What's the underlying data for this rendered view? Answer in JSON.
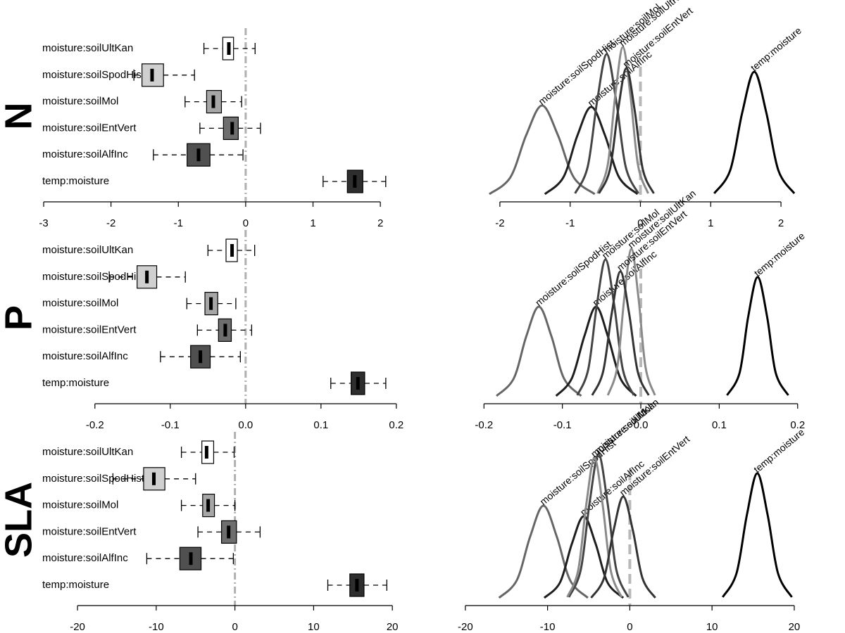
{
  "chart_data": [
    {
      "type": "boxplot",
      "title": "N",
      "xlim": [
        -3,
        2.26
      ],
      "xticks": [
        -3,
        -2,
        -1,
        0,
        1,
        2
      ],
      "reference_line": 0,
      "boxes": [
        {
          "name": "moisture:soilUltKan",
          "color": "#ffffff",
          "min": -0.62,
          "q1": -0.34,
          "median": -0.25,
          "q3": -0.18,
          "max": 0.14
        },
        {
          "name": "moisture:soilSpodHist",
          "color": "#d0d0d0",
          "min": -1.66,
          "q1": -1.54,
          "median": -1.39,
          "q3": -1.22,
          "max": -0.76
        },
        {
          "name": "moisture:soilMol",
          "color": "#a6a6a6",
          "min": -0.9,
          "q1": -0.58,
          "median": -0.48,
          "q3": -0.36,
          "max": -0.06
        },
        {
          "name": "moisture:soilEntVert",
          "color": "#6e6e6e",
          "min": -0.68,
          "q1": -0.33,
          "median": -0.2,
          "q3": -0.11,
          "max": 0.22
        },
        {
          "name": "moisture:soilAlfInc",
          "color": "#505050",
          "min": -1.37,
          "q1": -0.87,
          "median": -0.7,
          "q3": -0.53,
          "max": -0.04
        },
        {
          "name": "temp:moisture",
          "color": "#2e2e2e",
          "min": 1.15,
          "q1": 1.51,
          "median": 1.62,
          "q3": 1.74,
          "max": 2.08
        }
      ]
    },
    {
      "type": "density",
      "xlim": [
        -2.55,
        2.36
      ],
      "xticks": [
        -2,
        -1,
        0,
        1,
        2
      ],
      "reference_line": 0,
      "series": [
        {
          "name": "moisture:soilSpodHist",
          "color": "#666666",
          "x": [
            -2.15,
            -1.85,
            -1.625,
            -1.4,
            -1.175,
            -0.95,
            -0.65
          ],
          "values": [
            0.01,
            0.25,
            0.85,
            1.27,
            0.85,
            0.25,
            0.01
          ]
        },
        {
          "name": "moisture:soilAlfInc",
          "color": "#1e1e1e",
          "x": [
            -1.36,
            -1.096,
            -0.898,
            -0.7,
            -0.502,
            -0.304,
            -0.04
          ],
          "values": [
            0.01,
            0.25,
            0.84,
            1.25,
            0.84,
            0.25,
            0.01
          ]
        },
        {
          "name": "moisture:soilMol",
          "color": "#444444",
          "x": [
            -0.93,
            -0.75,
            -0.615,
            -0.48,
            -0.345,
            -0.21,
            -0.03
          ],
          "values": [
            0.02,
            0.4,
            1.34,
            2.0,
            1.34,
            0.4,
            0.02
          ]
        },
        {
          "name": "moisture:soilUltKan",
          "color": "#8a8a8a",
          "x": [
            -0.61,
            -0.466,
            -0.358,
            -0.25,
            -0.142,
            -0.034,
            0.11
          ],
          "values": [
            0.02,
            0.42,
            1.41,
            2.1,
            1.41,
            0.42,
            0.02
          ]
        },
        {
          "name": "moisture:soilEntVert",
          "color": "#333333",
          "x": [
            -0.59,
            -0.434,
            -0.317,
            -0.2,
            -0.083,
            0.034,
            0.19
          ],
          "values": [
            0.02,
            0.36,
            1.21,
            1.8,
            1.21,
            0.36,
            0.02
          ]
        },
        {
          "name": "temp:moisture",
          "color": "#000000",
          "x": [
            1.05,
            1.278,
            1.449,
            1.62,
            1.791,
            1.962,
            2.19
          ],
          "values": [
            0.02,
            0.35,
            1.17,
            1.75,
            1.17,
            0.35,
            0.02
          ]
        }
      ]
    },
    {
      "type": "boxplot",
      "title": "P",
      "xlim": [
        -0.268,
        0.202
      ],
      "xticks": [
        -0.2,
        -0.1,
        {
          "value": 0,
          "label": "0.0"
        },
        0.1,
        0.2
      ],
      "reference_line": 0,
      "boxes": [
        {
          "name": "moisture:soilUltKan",
          "color": "#ffffff",
          "min": -0.05,
          "q1": -0.026,
          "median": -0.018,
          "q3": -0.011,
          "max": 0.012
        },
        {
          "name": "moisture:soilSpodHist",
          "color": "#d0d0d0",
          "min": -0.181,
          "q1": -0.144,
          "median": -0.131,
          "q3": -0.118,
          "max": -0.08
        },
        {
          "name": "moisture:soilMol",
          "color": "#a6a6a6",
          "min": -0.078,
          "q1": -0.054,
          "median": -0.046,
          "q3": -0.037,
          "max": -0.013
        },
        {
          "name": "moisture:soilEntVert",
          "color": "#6e6e6e",
          "min": -0.064,
          "q1": -0.036,
          "median": -0.027,
          "q3": -0.019,
          "max": 0.008
        },
        {
          "name": "moisture:soilAlfInc",
          "color": "#505050",
          "min": -0.113,
          "q1": -0.073,
          "median": -0.06,
          "q3": -0.047,
          "max": -0.007
        },
        {
          "name": "temp:moisture",
          "color": "#2e2e2e",
          "min": 0.113,
          "q1": 0.14,
          "median": 0.149,
          "q3": 0.158,
          "max": 0.186
        }
      ]
    },
    {
      "type": "density",
      "xlim": [
        -0.229,
        0.211
      ],
      "xticks": [
        -0.2,
        -0.1,
        {
          "value": 0,
          "label": "0.0"
        },
        0.1,
        0.2
      ],
      "reference_line": 0,
      "series": [
        {
          "name": "moisture:soilSpodHist",
          "color": "#666666",
          "x": [
            -0.184,
            -0.162,
            -0.146,
            -0.13,
            -0.114,
            -0.098,
            -0.076
          ],
          "values": [
            0.01,
            0.26,
            0.86,
            1.28,
            0.86,
            0.26,
            0.01
          ]
        },
        {
          "name": "moisture:soilAlfInc",
          "color": "#1e1e1e",
          "x": [
            -0.108,
            -0.088,
            -0.072,
            -0.057,
            -0.042,
            -0.026,
            -0.006
          ],
          "values": [
            0.01,
            0.26,
            0.86,
            1.28,
            0.86,
            0.26,
            0.01
          ]
        },
        {
          "name": "moisture:soilMol",
          "color": "#444444",
          "x": [
            -0.081,
            -0.067,
            -0.056,
            -0.045,
            -0.034,
            -0.023,
            -0.009
          ],
          "values": [
            0.02,
            0.39,
            1.31,
            1.95,
            1.31,
            0.39,
            0.02
          ]
        },
        {
          "name": "moisture:soilUltKan",
          "color": "#8a8a8a",
          "x": [
            -0.042,
            -0.03,
            -0.021,
            -0.012,
            -0.003,
            0.006,
            0.018
          ],
          "values": [
            0.02,
            0.42,
            1.41,
            2.1,
            1.41,
            0.42,
            0.02
          ]
        },
        {
          "name": "moisture:soilEntVert",
          "color": "#333333",
          "x": [
            -0.062,
            -0.048,
            -0.037,
            -0.026,
            -0.015,
            -0.004,
            0.01
          ],
          "values": [
            0.02,
            0.36,
            1.19,
            1.78,
            1.19,
            0.36,
            0.02
          ]
        },
        {
          "name": "temp:moisture",
          "color": "#000000",
          "x": [
            0.11,
            0.126,
            0.137,
            0.149,
            0.161,
            0.172,
            0.188
          ],
          "values": [
            0.02,
            0.34,
            1.14,
            1.7,
            1.14,
            0.34,
            0.02
          ]
        }
      ]
    },
    {
      "type": "boxplot",
      "title": "SLA",
      "xlim": [
        -24.3,
        20.7
      ],
      "xticks": [
        -20,
        -10,
        0,
        10,
        20
      ],
      "reference_line": 0,
      "boxes": [
        {
          "name": "moisture:soilUltKan",
          "color": "#ffffff",
          "min": -6.8,
          "q1": -4.2,
          "median": -3.6,
          "q3": -2.7,
          "max": -0.1
        },
        {
          "name": "moisture:soilSpodHist",
          "color": "#d0d0d0",
          "min": -15.5,
          "q1": -11.6,
          "median": -10.3,
          "q3": -8.9,
          "max": -5
        },
        {
          "name": "moisture:soilMol",
          "color": "#a6a6a6",
          "min": -6.8,
          "q1": -4.1,
          "median": -3.4,
          "q3": -2.6,
          "max": 0
        },
        {
          "name": "moisture:soilEntVert",
          "color": "#6e6e6e",
          "min": -4.7,
          "q1": -1.7,
          "median": -0.8,
          "q3": 0.2,
          "max": 3.2
        },
        {
          "name": "moisture:soilAlfInc",
          "color": "#505050",
          "min": -11.2,
          "q1": -7,
          "median": -5.6,
          "q3": -4.3,
          "max": -0.2
        },
        {
          "name": "temp:moisture",
          "color": "#2e2e2e",
          "min": 11.8,
          "q1": 14.6,
          "median": 15.5,
          "q3": 16.4,
          "max": 19.3
        }
      ]
    },
    {
      "type": "density",
      "xlim": [
        -20.5,
        21.46
      ],
      "xticks": [
        -20,
        -10,
        0,
        10,
        20
      ],
      "reference_line": 0,
      "series": [
        {
          "name": "moisture:soilSpodHist",
          "color": "#666666",
          "x": [
            -15.9,
            -13.74,
            -12.12,
            -10.5,
            -8.88,
            -7.26,
            -5.1
          ],
          "values": [
            0.01,
            0.26,
            0.88,
            1.32,
            0.88,
            0.26,
            0.01
          ]
        },
        {
          "name": "moisture:soilAlfInc",
          "color": "#1e1e1e",
          "x": [
            -10.4,
            -8.48,
            -7.04,
            -5.6,
            -4.16,
            -2.72,
            -0.8
          ],
          "values": [
            0.01,
            0.23,
            0.78,
            1.17,
            0.78,
            0.23,
            0.01
          ]
        },
        {
          "name": "moisture:soilMol",
          "color": "#444444",
          "x": [
            -7.4,
            -5.96,
            -4.88,
            -3.8,
            -2.72,
            -1.64,
            -0.2
          ],
          "values": [
            0.02,
            0.41,
            1.37,
            2.05,
            1.37,
            0.41,
            0.02
          ]
        },
        {
          "name": "moisture:soilUltKan",
          "color": "#8a8a8a",
          "x": [
            -7.6,
            -6.28,
            -5.29,
            -4.3,
            -3.31,
            -2.32,
            -1.0
          ],
          "values": [
            0.02,
            0.4,
            1.34,
            2.0,
            1.34,
            0.4,
            0.02
          ]
        },
        {
          "name": "moisture:soilEntVert",
          "color": "#333333",
          "x": [
            -4.7,
            -3.14,
            -1.97,
            -0.8,
            0.37,
            1.54,
            3.1
          ],
          "values": [
            0.01,
            0.29,
            0.97,
            1.45,
            0.97,
            0.29,
            0.01
          ]
        },
        {
          "name": "temp:moisture",
          "color": "#000000",
          "x": [
            11.3,
            12.98,
            14.24,
            15.5,
            16.76,
            18.02,
            19.7
          ],
          "values": [
            0.02,
            0.36,
            1.19,
            1.78,
            1.19,
            0.36,
            0.02
          ]
        }
      ]
    }
  ]
}
